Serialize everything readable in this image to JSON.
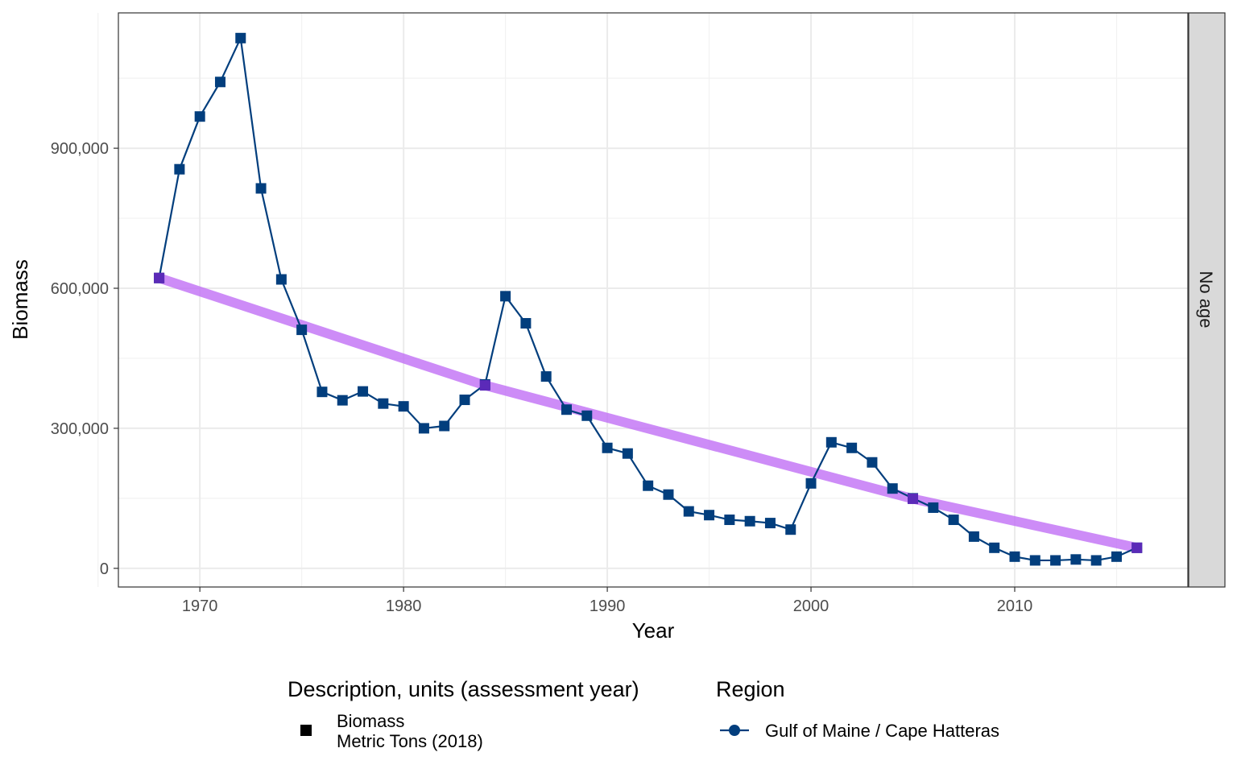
{
  "chart_data": {
    "type": "line",
    "xlabel": "Year",
    "ylabel": "Biomass",
    "xlim": [
      1966,
      2018.5
    ],
    "ylim": [
      -40000,
      1190000
    ],
    "x_ticks": [
      1970,
      1980,
      1990,
      2000,
      2010
    ],
    "x_tick_labels": [
      "1970",
      "1980",
      "1990",
      "2000",
      "2010"
    ],
    "y_ticks": [
      0,
      300000,
      600000,
      900000
    ],
    "y_tick_labels": [
      "0",
      "300,000",
      "600,000",
      "900,000"
    ],
    "facet_label": "No age",
    "series": [
      {
        "name": "Gulf of Maine / Cape Hatteras",
        "color": "#023E7D",
        "marker": "square",
        "x": [
          1968,
          1969,
          1970,
          1971,
          1972,
          1973,
          1974,
          1975,
          1976,
          1977,
          1978,
          1979,
          1980,
          1981,
          1982,
          1983,
          1984,
          1985,
          1986,
          1987,
          1988,
          1989,
          1990,
          1991,
          1992,
          1993,
          1994,
          1995,
          1996,
          1997,
          1998,
          1999,
          2000,
          2001,
          2002,
          2003,
          2004,
          2005,
          2006,
          2007,
          2008,
          2009,
          2010,
          2011,
          2012,
          2013,
          2014,
          2015,
          2016
        ],
        "values": [
          622000,
          855000,
          968000,
          1042000,
          1136000,
          814000,
          619000,
          511000,
          378000,
          360000,
          379000,
          353000,
          347000,
          300000,
          305000,
          361000,
          394000,
          583000,
          525000,
          411000,
          340000,
          327000,
          258000,
          246000,
          177000,
          158000,
          122000,
          114000,
          104000,
          101000,
          97000,
          83000,
          182000,
          270000,
          258000,
          227000,
          171000,
          150000,
          130000,
          104000,
          68000,
          44000,
          25000,
          17000,
          17000,
          19000,
          17000,
          25000,
          44000
        ]
      }
    ],
    "trend": {
      "name": "Trend",
      "color": "#BF6BF5",
      "x": [
        1968,
        1984,
        2005,
        2016
      ],
      "values": [
        622000,
        392000,
        149000,
        44000
      ]
    },
    "legend": {
      "description_title": "Description, units (assessment year)",
      "description_line1": "Biomass",
      "description_line2": "Metric Tons (2018)",
      "region_title": "Region",
      "region_label": "Gulf of Maine / Cape Hatteras",
      "position": "bottom"
    }
  }
}
